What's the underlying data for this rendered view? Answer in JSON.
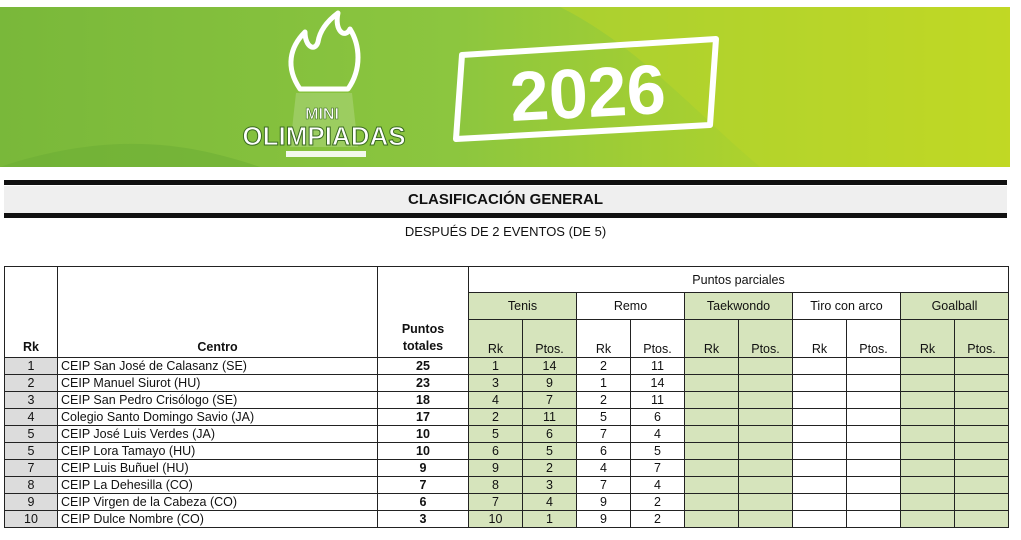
{
  "banner": {
    "logo_line1": "MINI",
    "logo_line2": "OLIMPIADAS",
    "year": "2026"
  },
  "title": "CLASIFICACIÓN GENERAL",
  "subtitle": "DESPUÉS DE 2 EVENTOS (DE 5)",
  "table": {
    "headers": {
      "rk": "Rk",
      "centro": "Centro",
      "puntos_line1": "Puntos",
      "puntos_line2": "totales",
      "parciales": "Puntos parciales",
      "sub_rk": "Rk",
      "sub_pts": "Ptos."
    },
    "events": [
      "Tenis",
      "Remo",
      "Taekwondo",
      "Tiro con arco",
      "Goalball"
    ],
    "rows": [
      {
        "rk": "1",
        "centro": "CEIP San José de Calasanz (SE)",
        "total": "25",
        "tenis_rk": "1",
        "tenis_pts": "14",
        "remo_rk": "2",
        "remo_pts": "11"
      },
      {
        "rk": "2",
        "centro": "CEIP Manuel Siurot (HU)",
        "total": "23",
        "tenis_rk": "3",
        "tenis_pts": "9",
        "remo_rk": "1",
        "remo_pts": "14"
      },
      {
        "rk": "3",
        "centro": "CEIP San Pedro Crisólogo (SE)",
        "total": "18",
        "tenis_rk": "4",
        "tenis_pts": "7",
        "remo_rk": "2",
        "remo_pts": "11"
      },
      {
        "rk": "4",
        "centro": "Colegio Santo Domingo Savio (JA)",
        "total": "17",
        "tenis_rk": "2",
        "tenis_pts": "11",
        "remo_rk": "5",
        "remo_pts": "6"
      },
      {
        "rk": "5",
        "centro": "CEIP José Luis Verdes (JA)",
        "total": "10",
        "tenis_rk": "5",
        "tenis_pts": "6",
        "remo_rk": "7",
        "remo_pts": "4"
      },
      {
        "rk": "5",
        "centro": "CEIP Lora Tamayo (HU)",
        "total": "10",
        "tenis_rk": "6",
        "tenis_pts": "5",
        "remo_rk": "6",
        "remo_pts": "5"
      },
      {
        "rk": "7",
        "centro": "CEIP Luis Buñuel (HU)",
        "total": "9",
        "tenis_rk": "9",
        "tenis_pts": "2",
        "remo_rk": "4",
        "remo_pts": "7"
      },
      {
        "rk": "8",
        "centro": "CEIP La Dehesilla (CO)",
        "total": "7",
        "tenis_rk": "8",
        "tenis_pts": "3",
        "remo_rk": "7",
        "remo_pts": "4"
      },
      {
        "rk": "9",
        "centro": "CEIP Virgen de la Cabeza (CO)",
        "total": "6",
        "tenis_rk": "7",
        "tenis_pts": "4",
        "remo_rk": "9",
        "remo_pts": "2"
      },
      {
        "rk": "10",
        "centro": "CEIP Dulce Nombre (CO)",
        "total": "3",
        "tenis_rk": "10",
        "tenis_pts": "1",
        "remo_rk": "9",
        "remo_pts": "2"
      }
    ]
  },
  "colors": {
    "banner_green": "#8cc63f",
    "banner_lime": "#c9dc1e",
    "cell_green": "#d6e4bc",
    "rk_gray": "#dcdcdc"
  }
}
